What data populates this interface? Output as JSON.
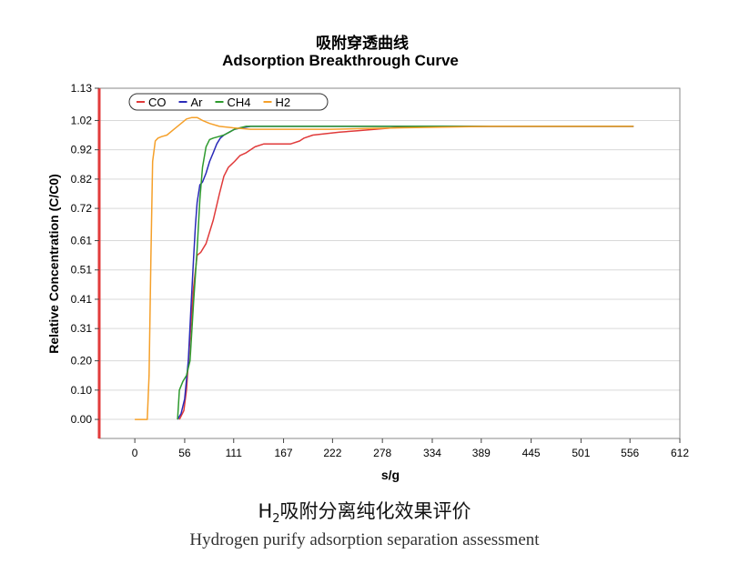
{
  "caption": {
    "zh_prefix": "H",
    "zh_sub": "2",
    "zh_suffix": "吸附分离纯化效果评价",
    "en": "Hydrogen purify adsorption separation assessment"
  },
  "colors": {
    "CO": "#e03a3a",
    "Ar": "#2b2bb8",
    "CH4": "#2e9a2e",
    "H2": "#f5a02a",
    "left_axis": "#e23b3b",
    "grid": "#d9d9d9"
  },
  "chart_data": {
    "type": "line",
    "title": "吸附穿透曲线",
    "subtitle": "Adsorption Breakthrough Curve",
    "xlabel": "s/g",
    "ylabel": "Relative Concentration (C/C0)",
    "xlim": [
      -40,
      612
    ],
    "ylim": [
      -0.065,
      1.13
    ],
    "x_ticks": [
      "0",
      "56",
      "111",
      "167",
      "222",
      "278",
      "334",
      "389",
      "445",
      "501",
      "556",
      "612"
    ],
    "y_ticks": [
      "1.13",
      "1.02",
      "0.92",
      "0.82",
      "0.72",
      "0.61",
      "0.51",
      "0.41",
      "0.31",
      "0.20",
      "0.10",
      "0.00"
    ],
    "legend_position": "top-left",
    "series": [
      {
        "name": "CO",
        "x": [
          50,
          55,
          58,
          62,
          66,
          70,
          74,
          80,
          88,
          95,
          100,
          105,
          112,
          118,
          125,
          135,
          145,
          160,
          175,
          185,
          190,
          200,
          215,
          230,
          250,
          270,
          290,
          320,
          360,
          420,
          480,
          560
        ],
        "y": [
          0.0,
          0.03,
          0.1,
          0.28,
          0.45,
          0.56,
          0.57,
          0.6,
          0.68,
          0.77,
          0.83,
          0.86,
          0.88,
          0.9,
          0.91,
          0.93,
          0.94,
          0.94,
          0.94,
          0.95,
          0.96,
          0.97,
          0.975,
          0.98,
          0.985,
          0.99,
          0.995,
          1.0,
          1.0,
          1.0,
          1.0,
          1.0
        ]
      },
      {
        "name": "Ar",
        "x": [
          48,
          52,
          56,
          60,
          63,
          66,
          68,
          70,
          73,
          76,
          80,
          84,
          88,
          92,
          96,
          100,
          106,
          112,
          120,
          130,
          140,
          160,
          200,
          300,
          400,
          500,
          560
        ],
        "y": [
          0.0,
          0.02,
          0.07,
          0.2,
          0.38,
          0.55,
          0.66,
          0.74,
          0.8,
          0.81,
          0.84,
          0.88,
          0.91,
          0.94,
          0.96,
          0.97,
          0.98,
          0.99,
          0.995,
          1.0,
          1.0,
          1.0,
          1.0,
          1.0,
          1.0,
          1.0,
          1.0
        ]
      },
      {
        "name": "CH4",
        "x": [
          48,
          50,
          54,
          58,
          62,
          66,
          70,
          73,
          76,
          80,
          84,
          88,
          94,
          100,
          106,
          112,
          118,
          125,
          135,
          150,
          180,
          250,
          350,
          450,
          560
        ],
        "y": [
          0.0,
          0.1,
          0.13,
          0.15,
          0.2,
          0.4,
          0.58,
          0.75,
          0.86,
          0.93,
          0.955,
          0.96,
          0.965,
          0.97,
          0.98,
          0.99,
          0.995,
          1.0,
          1.0,
          1.0,
          1.0,
          1.0,
          1.0,
          1.0,
          1.0
        ]
      },
      {
        "name": "H2",
        "x": [
          0,
          14,
          16,
          18,
          20,
          23,
          26,
          30,
          36,
          44,
          52,
          58,
          64,
          70,
          76,
          84,
          95,
          110,
          130,
          160,
          220,
          300,
          400,
          500,
          560
        ],
        "y": [
          0.0,
          0.0,
          0.15,
          0.55,
          0.88,
          0.95,
          0.96,
          0.965,
          0.97,
          0.99,
          1.01,
          1.025,
          1.03,
          1.03,
          1.02,
          1.01,
          1.0,
          0.995,
          0.99,
          0.99,
          0.99,
          0.995,
          1.0,
          1.0,
          1.0
        ]
      }
    ]
  }
}
